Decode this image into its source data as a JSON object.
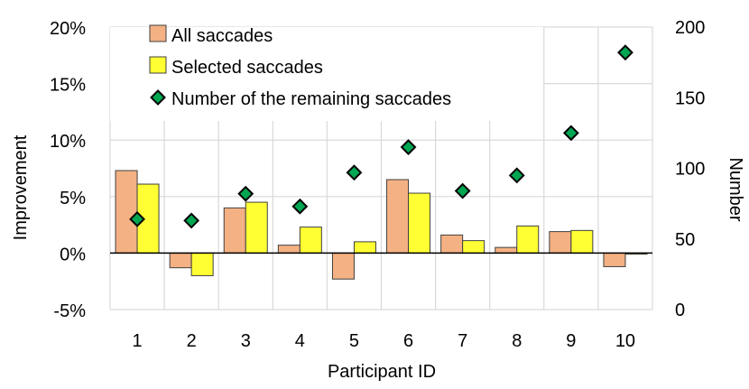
{
  "chart_data": {
    "type": "bar",
    "categories": [
      "1",
      "2",
      "3",
      "4",
      "5",
      "6",
      "7",
      "8",
      "9",
      "10"
    ],
    "xlabel": "Participant ID",
    "ylabel": "Improvement",
    "y2label": "Number",
    "ylim": [
      -5,
      20
    ],
    "y2lim": [
      0,
      200
    ],
    "y_ticks": [
      "-5%",
      "0%",
      "5%",
      "10%",
      "15%",
      "20%"
    ],
    "y2_ticks": [
      "0",
      "50",
      "100",
      "150",
      "200"
    ],
    "legend_position": "top",
    "grid": true,
    "series": [
      {
        "name": "All saccades",
        "type": "bar",
        "axis": "left",
        "color": "#f4b183",
        "values": [
          7.3,
          -1.3,
          4.0,
          0.7,
          -2.3,
          6.5,
          1.6,
          0.5,
          1.9,
          -1.2
        ]
      },
      {
        "name": "Selected saccades",
        "type": "bar",
        "axis": "left",
        "color": "#ffff33",
        "values": [
          6.1,
          -2.0,
          4.5,
          2.3,
          1.0,
          5.3,
          1.1,
          2.4,
          2.0,
          -0.1
        ]
      },
      {
        "name": "Number of the remaining saccades",
        "type": "scatter",
        "axis": "right",
        "color": "#00a651",
        "values": [
          64,
          63,
          82,
          73,
          97,
          115,
          84,
          95,
          125,
          182
        ]
      }
    ]
  }
}
